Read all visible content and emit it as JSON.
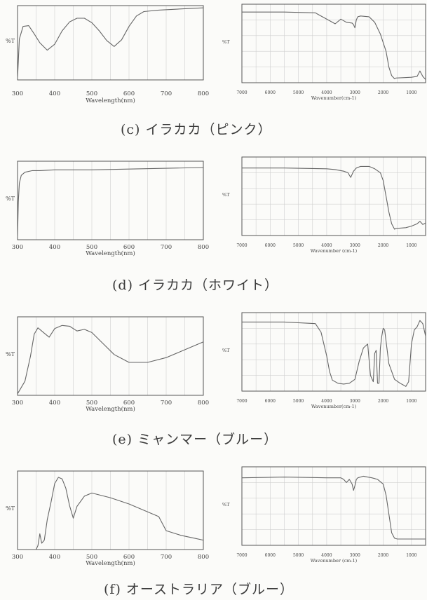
{
  "panels": [
    {
      "caption": "(c) イラカカ（ピンク）",
      "uv": {
        "ylabel": "%T",
        "xlabel": "Wavelength(nm)",
        "xticks": [
          "300",
          "400",
          "500",
          "600",
          "700",
          "800"
        ]
      },
      "ir": {
        "ylabel": "%T",
        "xlabel": "Wavenumber(cm-1)",
        "xticks": [
          "7000",
          "6000",
          "5000",
          "4000",
          "3000",
          "2000",
          "1000"
        ]
      }
    },
    {
      "caption": "(d) イラカカ（ホワイト）",
      "uv": {
        "ylabel": "%T",
        "xlabel": "Wavelength(nm)",
        "xticks": [
          "300",
          "400",
          "500",
          "600",
          "700",
          "800"
        ]
      },
      "ir": {
        "ylabel": "%T",
        "xlabel": "Wavenumber (cm-1)",
        "xticks": [
          "7000",
          "6000",
          "5000",
          "4000",
          "3000",
          "2000",
          "1000"
        ]
      }
    },
    {
      "caption": "(e) ミャンマー（ブルー）",
      "uv": {
        "ylabel": "%T",
        "xlabel": "Wavelength(nm)",
        "xticks": [
          "300",
          "400",
          "500",
          "600",
          "700",
          "800"
        ]
      },
      "ir": {
        "ylabel": "%T",
        "xlabel": "Wavenumber(cm-1)",
        "xticks": [
          "7000",
          "6000",
          "5000",
          "4000",
          "3000",
          "2000",
          "1000"
        ]
      }
    },
    {
      "caption": "(f) オーストラリア（ブルー）",
      "uv": {
        "ylabel": "%T",
        "xlabel": "Wavelength(nm)",
        "xticks": [
          "300",
          "400",
          "500",
          "600",
          "700",
          "800"
        ]
      },
      "ir": {
        "ylabel": "%T",
        "xlabel": "Wavenumber (cm-1)",
        "xticks": [
          "7000",
          "6000",
          "5000",
          "4000",
          "3000",
          "2000",
          "1000"
        ]
      }
    }
  ],
  "chart_data": [
    {
      "type": "line",
      "xlabel": "Wavelength(nm)",
      "ylabel": "%T",
      "xlim": [
        300,
        800
      ],
      "ylim": [
        0,
        100
      ],
      "series": [
        {
          "x": [
            300,
            305,
            315,
            330,
            345,
            360,
            380,
            400,
            420,
            440,
            460,
            480,
            500,
            520,
            540,
            560,
            580,
            600,
            620,
            640,
            680,
            720,
            760,
            800
          ],
          "y": [
            2,
            55,
            72,
            73,
            62,
            50,
            40,
            48,
            66,
            78,
            83,
            83,
            77,
            66,
            53,
            45,
            54,
            72,
            86,
            92,
            94,
            95,
            96,
            97
          ]
        }
      ]
    },
    {
      "type": "line",
      "xlabel": "Wavenumber(cm-1)",
      "ylabel": "%T",
      "xlim": [
        7000,
        500
      ],
      "ylim": [
        0,
        100
      ],
      "series": [
        {
          "x": [
            7000,
            5500,
            4400,
            4300,
            3900,
            3700,
            3500,
            3300,
            3100,
            3050,
            3000,
            2950,
            2900,
            2800,
            2500,
            2300,
            2100,
            1900,
            1800,
            1700,
            1600,
            1550,
            1000,
            800,
            700,
            600,
            500
          ],
          "y": [
            90,
            90,
            89,
            87,
            79,
            75,
            81,
            77,
            76,
            74,
            70,
            80,
            84,
            85,
            84,
            77,
            62,
            40,
            20,
            9,
            5,
            6,
            7,
            8,
            15,
            8,
            4
          ]
        }
      ]
    },
    {
      "type": "line",
      "xlabel": "Wavelength(nm)",
      "ylabel": "%T",
      "xlim": [
        300,
        800
      ],
      "ylim": [
        0,
        100
      ],
      "series": [
        {
          "x": [
            300,
            302,
            305,
            310,
            320,
            340,
            360,
            400,
            500,
            600,
            700,
            800
          ],
          "y": [
            2,
            48,
            72,
            82,
            86,
            88,
            88,
            89,
            89,
            90,
            91,
            92
          ]
        }
      ]
    },
    {
      "type": "line",
      "xlabel": "Wavenumber (cm-1)",
      "ylabel": "%T",
      "xlim": [
        7000,
        500
      ],
      "ylim": [
        0,
        100
      ],
      "series": [
        {
          "x": [
            7000,
            5500,
            4000,
            3700,
            3400,
            3250,
            3150,
            3050,
            2950,
            2800,
            2500,
            2300,
            2100,
            2000,
            1900,
            1800,
            1700,
            1600,
            1550,
            1200,
            1000,
            800,
            700,
            600,
            500
          ],
          "y": [
            86,
            86,
            85,
            84,
            82,
            80,
            74,
            82,
            86,
            88,
            88,
            85,
            80,
            70,
            50,
            30,
            15,
            8,
            9,
            10,
            12,
            15,
            18,
            14,
            16
          ]
        }
      ]
    },
    {
      "type": "line",
      "xlabel": "Wavelength(nm)",
      "ylabel": "%T",
      "xlim": [
        300,
        800
      ],
      "ylim": [
        0,
        100
      ],
      "series": [
        {
          "x": [
            300,
            320,
            335,
            345,
            355,
            370,
            385,
            400,
            420,
            440,
            460,
            480,
            500,
            530,
            560,
            600,
            650,
            700,
            740,
            780,
            800
          ],
          "y": [
            2,
            18,
            50,
            78,
            86,
            80,
            74,
            85,
            89,
            88,
            82,
            84,
            80,
            66,
            52,
            42,
            42,
            48,
            56,
            64,
            68
          ]
        }
      ]
    },
    {
      "type": "line",
      "xlabel": "Wavenumber(cm-1)",
      "ylabel": "%T",
      "xlim": [
        7000,
        500
      ],
      "ylim": [
        0,
        100
      ],
      "series": [
        {
          "x": [
            7000,
            5500,
            4400,
            4200,
            4000,
            3900,
            3800,
            3600,
            3400,
            3200,
            3000,
            2850,
            2700,
            2550,
            2450,
            2350,
            2300,
            2250,
            2200,
            2150,
            2100,
            2050,
            2000,
            1950,
            1800,
            1600,
            1400,
            1300,
            1200,
            1150,
            1100,
            1000,
            900,
            800,
            700,
            600,
            500
          ],
          "y": [
            88,
            88,
            86,
            75,
            45,
            25,
            14,
            10,
            9,
            10,
            15,
            38,
            55,
            60,
            20,
            12,
            48,
            52,
            10,
            10,
            55,
            70,
            80,
            78,
            35,
            15,
            10,
            8,
            6,
            9,
            12,
            60,
            78,
            82,
            90,
            86,
            70
          ]
        }
      ]
    },
    {
      "type": "line",
      "xlabel": "Wavelength(nm)",
      "ylabel": "%T",
      "xlim": [
        300,
        800
      ],
      "ylim": [
        0,
        100
      ],
      "series": [
        {
          "x": [
            350,
            355,
            360,
            365,
            372,
            380,
            390,
            400,
            410,
            420,
            430,
            440,
            450,
            460,
            480,
            500,
            550,
            600,
            650,
            680,
            700,
            740,
            780,
            800
          ],
          "y": [
            0,
            5,
            20,
            8,
            12,
            38,
            60,
            84,
            92,
            90,
            78,
            56,
            40,
            55,
            68,
            72,
            66,
            58,
            48,
            42,
            24,
            18,
            14,
            12
          ]
        }
      ]
    },
    {
      "type": "line",
      "xlabel": "Wavenumber (cm-1)",
      "ylabel": "%T",
      "xlim": [
        7000,
        500
      ],
      "ylim": [
        0,
        100
      ],
      "series": [
        {
          "x": [
            7000,
            5500,
            4000,
            3500,
            3400,
            3300,
            3200,
            3100,
            3050,
            3000,
            2950,
            2900,
            2700,
            2400,
            2200,
            2000,
            1900,
            1800,
            1700,
            1600,
            1500,
            1200,
            1000,
            800,
            500
          ],
          "y": [
            86,
            87,
            86,
            86,
            84,
            80,
            84,
            78,
            70,
            76,
            84,
            86,
            88,
            86,
            84,
            78,
            64,
            40,
            16,
            9,
            8,
            8,
            8,
            8,
            8
          ]
        }
      ]
    }
  ]
}
